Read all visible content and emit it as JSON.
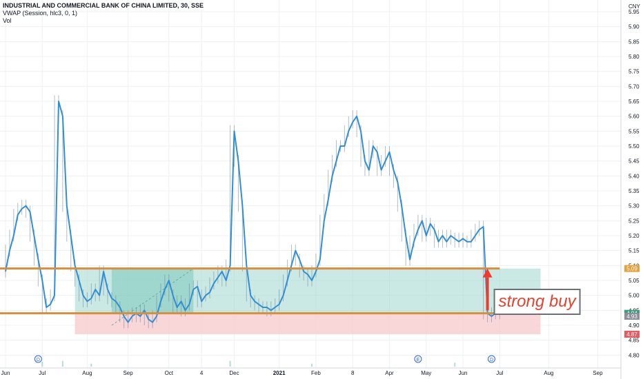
{
  "header": {
    "symbol_line": "INDUSTRIAL AND COMMERCIAL BANK OF CHINA LIMITED, 30, SSE",
    "indicator_vwap": "VWAP (Session, hlc3, 0, 1)",
    "indicator_vol": "Vol"
  },
  "currency": "CNY",
  "annotation": {
    "text": "strong buy"
  },
  "colors": {
    "price_line": "#2f8fd6",
    "candle": "#6b7b8c",
    "level_line": "#d98e3b",
    "long_zone": "#a7dbd3",
    "long_zone_dark": "#7cc8bb",
    "stop_zone": "#f7c9cc",
    "arrow": "#f23a2a",
    "annotation_text": "#e8402a",
    "label_orange": "#e8a23a",
    "label_green": "#3a9f7a",
    "label_gray": "#8a8f99",
    "label_red": "#e85a62",
    "event_marker": "#2962ff"
  },
  "chart_data": {
    "type": "line",
    "title": "INDUSTRIAL AND COMMERCIAL BANK OF CHINA LIMITED, 30, SSE",
    "ylim": [
      4.78,
      5.98
    ],
    "y_ticks": [
      4.8,
      4.85,
      4.9,
      4.95,
      5.0,
      5.05,
      5.1,
      5.15,
      5.2,
      5.25,
      5.3,
      5.35,
      5.4,
      5.45,
      5.5,
      5.55,
      5.6,
      5.65,
      5.7,
      5.75,
      5.8,
      5.85,
      5.9,
      5.95
    ],
    "x_labels": [
      "Jun",
      "Jul",
      "Aug",
      "Sep",
      "Oct",
      "4",
      "Dec",
      "2021",
      "Feb",
      "8",
      "Apr",
      "May",
      "Jun",
      "Jul",
      "Aug",
      "Sep"
    ],
    "x_label_index": [
      0,
      9,
      20,
      30,
      40,
      48,
      56,
      67,
      76,
      85,
      94,
      103,
      112,
      121,
      133,
      145
    ],
    "x_count": 150,
    "series": [
      {
        "key": "price",
        "x": [
          0,
          1,
          2,
          3,
          4,
          5,
          6,
          7,
          8,
          9,
          10,
          11,
          12,
          13,
          14,
          15,
          16,
          17,
          18,
          19,
          20,
          21,
          22,
          23,
          24,
          25,
          26,
          27,
          28,
          29,
          30,
          31,
          32,
          33,
          34,
          35,
          36,
          37,
          38,
          39,
          40,
          41,
          42,
          43,
          44,
          45,
          46,
          47,
          48,
          49,
          50,
          51,
          52,
          53,
          54,
          55,
          56,
          57,
          58,
          59,
          60,
          61,
          62,
          63,
          64,
          65,
          66,
          67,
          68,
          69,
          70,
          71,
          72,
          73,
          74,
          75,
          76,
          77,
          78,
          79,
          80,
          81,
          82,
          83,
          84,
          85,
          86,
          87,
          88,
          89,
          90,
          91,
          92,
          93,
          94,
          95,
          96,
          97,
          98,
          99,
          100,
          101,
          102,
          103,
          104,
          105,
          106,
          107,
          108,
          109,
          110,
          111,
          112,
          113,
          114,
          115,
          116,
          117,
          118,
          119,
          120,
          121,
          122
        ],
        "y": [
          5.08,
          5.15,
          5.2,
          5.27,
          5.29,
          5.3,
          5.28,
          5.2,
          5.12,
          5.05,
          4.96,
          4.97,
          5.0,
          5.65,
          5.6,
          5.3,
          5.2,
          5.1,
          5.05,
          5.0,
          4.98,
          4.99,
          5.02,
          5.0,
          5.08,
          5.02,
          4.99,
          4.98,
          4.96,
          4.93,
          4.91,
          4.93,
          4.94,
          4.93,
          4.95,
          4.92,
          4.91,
          4.93,
          4.98,
          5.02,
          5.05,
          5.0,
          4.96,
          4.98,
          4.95,
          4.97,
          5.02,
          5.03,
          4.98,
          5.0,
          5.01,
          5.04,
          5.06,
          5.08,
          5.05,
          5.1,
          5.55,
          5.45,
          5.3,
          5.1,
          5.0,
          4.98,
          4.97,
          4.96,
          4.96,
          4.95,
          4.96,
          4.97,
          5.0,
          5.05,
          5.1,
          5.15,
          5.12,
          5.08,
          5.07,
          5.05,
          5.08,
          5.12,
          5.25,
          5.32,
          5.4,
          5.45,
          5.5,
          5.5,
          5.55,
          5.58,
          5.6,
          5.55,
          5.45,
          5.42,
          5.5,
          5.48,
          5.42,
          5.45,
          5.48,
          5.42,
          5.38,
          5.3,
          5.2,
          5.12,
          5.18,
          5.22,
          5.25,
          5.2,
          5.24,
          5.22,
          5.18,
          5.2,
          5.18,
          5.2,
          5.19,
          5.18,
          5.19,
          5.18,
          5.18,
          5.2,
          5.22,
          5.23,
          4.94,
          4.93,
          4.94,
          4.94,
          4.94
        ]
      }
    ],
    "volume": [
      {
        "x": 9,
        "level": 0.5
      },
      {
        "x": 14,
        "level": 0.6
      },
      {
        "x": 21,
        "level": 0.3
      },
      {
        "x": 55,
        "level": 0.6
      },
      {
        "x": 75,
        "level": 0.3
      },
      {
        "x": 110,
        "level": 0.4
      }
    ],
    "levels": [
      {
        "name": "resistance",
        "value": 5.09
      },
      {
        "name": "support",
        "value": 4.94
      }
    ],
    "position": {
      "entry": 4.94,
      "target": 5.09,
      "stop": 4.87,
      "x_start": 17,
      "x_end": 131,
      "highlight_x_start": 26,
      "highlight_x_end": 46
    },
    "event_markers": [
      {
        "label": "D",
        "x": 8
      },
      {
        "label": "E",
        "x": 101
      },
      {
        "label": "D",
        "x": 119
      }
    ],
    "price_labels": [
      {
        "value": 5.09,
        "text": "5.09",
        "style": "orange"
      },
      {
        "value": 4.94,
        "text": "4.94",
        "style": "green"
      },
      {
        "value": 4.93,
        "text": "4.93",
        "style": "gray"
      },
      {
        "value": 4.87,
        "text": "4.87",
        "style": "red"
      }
    ],
    "grid": true
  }
}
